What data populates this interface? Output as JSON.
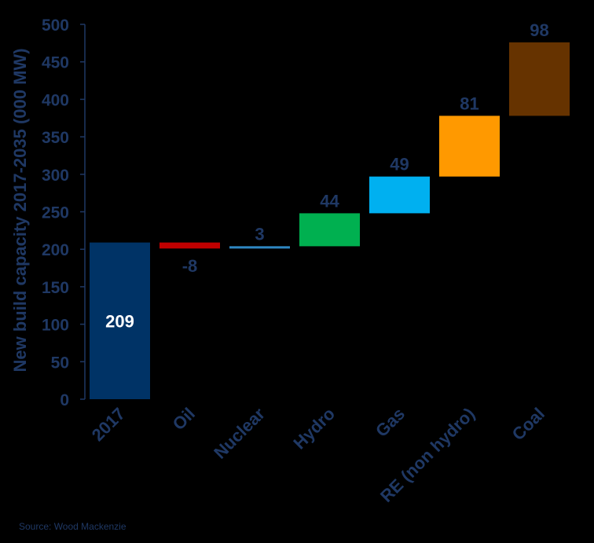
{
  "chart_data": {
    "type": "bar",
    "subtype": "waterfall",
    "categories": [
      "2017",
      "Oil",
      "Nuclear",
      "Hydro",
      "Gas",
      "RE (non hydro)",
      "Coal"
    ],
    "values": [
      209,
      -8,
      3,
      44,
      49,
      81,
      98
    ],
    "data_labels": [
      "209",
      "-8",
      "3",
      "44",
      "49",
      "81",
      "98"
    ],
    "ylabel": "New build capacity 2017-2035 (000 MW)",
    "xlabel": "",
    "title": "",
    "ylim": [
      0,
      500
    ],
    "yticks": [
      0,
      50,
      100,
      150,
      200,
      250,
      300,
      350,
      400,
      450,
      500
    ],
    "grid": false,
    "legend": "none",
    "colors": [
      "#003366",
      "#c00000",
      "#2e86c1",
      "#00b050",
      "#00b0f0",
      "#ff9900",
      "#663300"
    ],
    "background": "#000000",
    "axis_color": "#1f3864",
    "label_color": "#1f3864",
    "base_label_color": "#ffffff"
  },
  "footer": {
    "source": "Source: Wood Mackenzie"
  }
}
